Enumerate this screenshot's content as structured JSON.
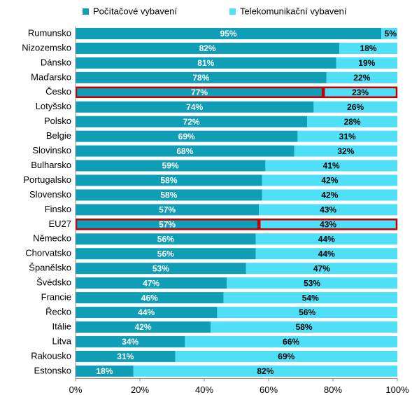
{
  "chart_data": {
    "type": "stacked_barh",
    "categories": [
      "Rumunsko",
      "Nizozemsko",
      "Dánsko",
      "Maďarsko",
      "Česko",
      "Lotyšsko",
      "Polsko",
      "Belgie",
      "Slovinsko",
      "Bulharsko",
      "Portugalsko",
      "Slovensko",
      "Finsko",
      "EU27",
      "Německo",
      "Chorvatsko",
      "Španělsko",
      "Švédsko",
      "Francie",
      "Řecko",
      "Itálie",
      "Litva",
      "Rakousko",
      "Estonsko"
    ],
    "series": [
      {
        "name": "Počítačové vybavení",
        "color": "#109db6",
        "values": [
          95,
          82,
          81,
          78,
          77,
          74,
          72,
          69,
          68,
          59,
          58,
          58,
          57,
          57,
          56,
          56,
          53,
          47,
          46,
          44,
          42,
          34,
          31,
          18
        ],
        "value_labels": [
          "95%",
          "82%",
          "81%",
          "78%",
          "77%",
          "74%",
          "72%",
          "69%",
          "68%",
          "59%",
          "58%",
          "58%",
          "57%",
          "57%",
          "56%",
          "56%",
          "53%",
          "47%",
          "46%",
          "44%",
          "42%",
          "34%",
          "31%",
          "18%"
        ],
        "label_color": "#ffffff"
      },
      {
        "name": "Telekomunikační vybavení",
        "color": "#4fdff6",
        "values": [
          5,
          18,
          19,
          22,
          23,
          26,
          28,
          31,
          32,
          41,
          42,
          42,
          43,
          43,
          44,
          44,
          47,
          53,
          54,
          56,
          58,
          66,
          69,
          82
        ],
        "value_labels": [
          "5%",
          "18%",
          "19%",
          "22%",
          "23%",
          "26%",
          "28%",
          "31%",
          "32%",
          "41%",
          "42%",
          "42%",
          "43%",
          "43%",
          "44%",
          "44%",
          "47%",
          "53%",
          "54%",
          "56%",
          "58%",
          "66%",
          "69%",
          "82%"
        ],
        "label_color": "#000000"
      }
    ],
    "xlim": [
      0,
      100
    ],
    "xticks": [
      {
        "value": 0,
        "label": "0%"
      },
      {
        "value": 20,
        "label": "20%"
      },
      {
        "value": 40,
        "label": "40%"
      },
      {
        "value": 60,
        "label": "60%"
      },
      {
        "value": 80,
        "label": "80%"
      },
      {
        "value": 100,
        "label": "100%"
      }
    ],
    "highlight": [
      4,
      13
    ],
    "highlight_color": "#c00000",
    "legend": "top"
  }
}
